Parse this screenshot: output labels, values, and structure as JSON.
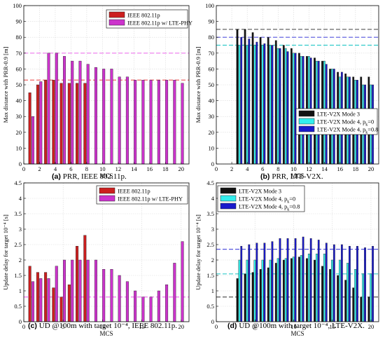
{
  "chart_data": [
    {
      "id": "a",
      "type": "bar",
      "caption_tag": "(a)",
      "caption": "PRR, IEEE 802.11p.",
      "xlabel": "MCS",
      "ylabel": "Max distance with PRR-0.9 [m]",
      "xlim": [
        0,
        21
      ],
      "ylim": [
        0,
        100
      ],
      "xticks": [
        0,
        2,
        4,
        6,
        8,
        10,
        12,
        14,
        16,
        18,
        20
      ],
      "yticks": [
        0,
        10,
        20,
        30,
        40,
        50,
        60,
        70,
        80,
        90,
        100
      ],
      "grid": true,
      "legend_position": "top-right",
      "x": [
        1,
        2,
        3,
        4,
        5,
        6,
        7,
        8,
        9,
        10,
        11,
        12,
        13,
        14,
        15,
        16,
        17,
        18,
        19,
        20
      ],
      "series": [
        {
          "name": "IEEE 802.11p",
          "color": "#cc1f1f",
          "values": [
            45,
            50,
            53,
            53,
            51,
            51,
            51,
            51,
            null,
            null,
            null,
            null,
            null,
            null,
            null,
            null,
            null,
            null,
            null,
            null
          ]
        },
        {
          "name": "IEEE 802.11p w/ LTE-PHY",
          "color": "#cc33cc",
          "values": [
            30,
            52,
            70,
            70,
            68,
            65,
            65,
            63,
            61,
            60,
            60,
            55,
            55,
            53,
            53,
            53,
            53,
            53,
            53,
            51
          ]
        }
      ],
      "reference_lines": [
        {
          "y": 70,
          "color": "#ee77ee"
        },
        {
          "y": 53,
          "color": "#ee6666"
        }
      ]
    },
    {
      "id": "b",
      "type": "bar",
      "caption_tag": "(b)",
      "caption": "PRR, LTE-V2X.",
      "xlabel": "MCS",
      "ylabel": "Max distance with PRR-0.9 [m]",
      "xlim": [
        0,
        21
      ],
      "ylim": [
        0,
        100
      ],
      "xticks": [
        0,
        2,
        4,
        6,
        8,
        10,
        12,
        14,
        16,
        18,
        20
      ],
      "yticks": [
        0,
        10,
        20,
        30,
        40,
        50,
        60,
        70,
        80,
        90,
        100
      ],
      "grid": true,
      "legend_position": "bottom-right",
      "x": [
        3,
        4,
        5,
        6,
        7,
        8,
        9,
        10,
        11,
        12,
        13,
        14,
        15,
        16,
        17,
        18,
        19,
        20
      ],
      "series": [
        {
          "name": "LTE-V2X Mode 3",
          "color": "#111111",
          "values": [
            85,
            85,
            83,
            80,
            80,
            78,
            75,
            73,
            70,
            68,
            67,
            65,
            60,
            58,
            57,
            55,
            55,
            55
          ]
        },
        {
          "name": "LTE-V2X Mode 4, p",
          "sub": "k",
          "suffix": "=0",
          "color": "#33eeee",
          "values": [
            75,
            75,
            75,
            75,
            75,
            73,
            73,
            70,
            68,
            68,
            65,
            65,
            60,
            55,
            55,
            53,
            50,
            50
          ]
        },
        {
          "name": "LTE-V2X Mode 4, p",
          "sub": "k",
          "suffix": "=0.8",
          "color": "#1a1acc",
          "values": [
            80,
            79,
            77,
            76,
            75,
            73,
            71,
            70,
            68,
            67,
            65,
            63,
            60,
            58,
            55,
            53,
            50,
            50
          ]
        }
      ],
      "reference_lines": [
        {
          "y": 85,
          "color": "#666666"
        },
        {
          "y": 80,
          "color": "#5555dd"
        },
        {
          "y": 75,
          "color": "#33cccc"
        }
      ]
    },
    {
      "id": "c",
      "type": "bar",
      "caption_tag": "(c)",
      "caption": "UD @100m with target 10⁻⁴, IEEE 802.11p.",
      "xlabel": "MCS",
      "ylabel": "Update delay for target 10⁻⁴ [s]",
      "xlim": [
        0,
        21
      ],
      "ylim": [
        0,
        4.5
      ],
      "xticks": [
        0,
        5,
        10,
        15,
        20
      ],
      "yticks": [
        0,
        0.5,
        1,
        1.5,
        2,
        2.5,
        3,
        3.5,
        4,
        4.5
      ],
      "grid": true,
      "legend_position": "top-right",
      "x": [
        1,
        2,
        3,
        4,
        5,
        6,
        7,
        8,
        9,
        10,
        11,
        12,
        13,
        14,
        15,
        16,
        17,
        18,
        19,
        20
      ],
      "series": [
        {
          "name": "IEEE 802.11p",
          "color": "#cc1f1f",
          "values": [
            1.8,
            1.6,
            1.6,
            1.1,
            0.8,
            1.2,
            2.45,
            2.8,
            null,
            null,
            null,
            null,
            null,
            null,
            null,
            null,
            null,
            null,
            null,
            null
          ]
        },
        {
          "name": "IEEE 802.11p w/ LTE-PHY",
          "color": "#cc33cc",
          "values": [
            1.3,
            1.4,
            1.4,
            1.8,
            2.0,
            2.0,
            2.0,
            2.0,
            2.0,
            1.7,
            1.7,
            1.5,
            1.3,
            1.0,
            0.8,
            0.8,
            1.0,
            1.2,
            1.9,
            2.6
          ]
        }
      ],
      "reference_lines": [
        {
          "y": 0.8,
          "color": "#ee66ee"
        }
      ]
    },
    {
      "id": "d",
      "type": "bar",
      "caption_tag": "(d)",
      "caption": "UD @100m with target 10⁻⁴, LTE-V2X.",
      "xlabel": "MCS",
      "ylabel": "Update delay for target 10⁻⁴ [s]",
      "xlim": [
        0,
        21
      ],
      "ylim": [
        0,
        4.5
      ],
      "xticks": [
        0,
        5,
        10,
        15,
        20
      ],
      "yticks": [
        0,
        0.5,
        1,
        1.5,
        2,
        2.5,
        3,
        3.5,
        4,
        4.5
      ],
      "grid": true,
      "legend_position": "top-left",
      "x": [
        3,
        4,
        5,
        6,
        7,
        8,
        9,
        10,
        11,
        12,
        13,
        14,
        15,
        16,
        17,
        18,
        19,
        20
      ],
      "series": [
        {
          "name": "LTE-V2X Mode 3",
          "color": "#111111",
          "values": [
            1.4,
            1.55,
            1.6,
            1.7,
            1.75,
            1.9,
            2.0,
            2.05,
            2.1,
            2.05,
            2.0,
            1.8,
            1.7,
            1.5,
            1.35,
            1.1,
            0.8,
            0.8
          ]
        },
        {
          "name": "LTE-V2X Mode 4, p",
          "sub": "k",
          "suffix": "=0",
          "color": "#33eeee",
          "values": [
            2.0,
            2.0,
            2.0,
            2.0,
            2.0,
            2.05,
            2.05,
            2.1,
            2.15,
            2.2,
            2.2,
            2.2,
            2.0,
            2.0,
            1.9,
            1.7,
            1.55,
            1.55
          ]
        },
        {
          "name": "LTE-V2X Mode 4, p",
          "sub": "k",
          "suffix": "=0.8",
          "color": "#1a1acc",
          "values": [
            2.45,
            2.5,
            2.55,
            2.55,
            2.6,
            2.7,
            2.7,
            2.7,
            2.75,
            2.7,
            2.65,
            2.55,
            2.5,
            2.5,
            2.45,
            2.45,
            2.4,
            2.45
          ]
        }
      ],
      "reference_lines": [
        {
          "y": 2.35,
          "color": "#5555dd"
        },
        {
          "y": 1.55,
          "color": "#33cccc"
        },
        {
          "y": 0.8,
          "color": "#444444"
        }
      ]
    }
  ]
}
